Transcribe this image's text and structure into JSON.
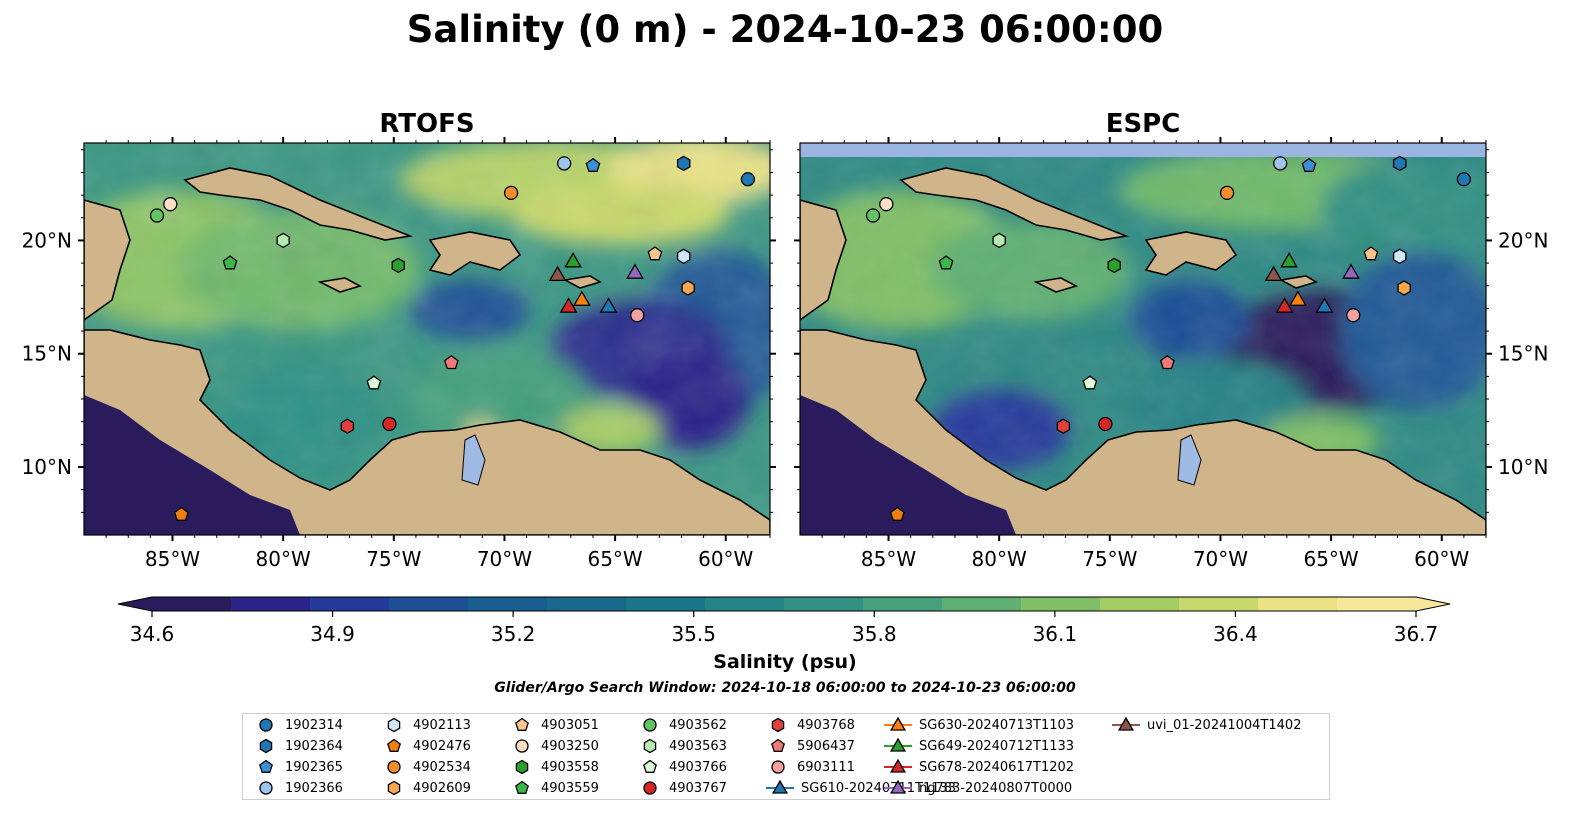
{
  "figure": {
    "title": "Salinity (0 m) - 2024-10-23 06:00:00",
    "subtitle": "Glider/Argo Search Window: 2024-10-18 06:00:00 to 2024-10-23 06:00:00"
  },
  "colors": {
    "land": "#d0b48a",
    "lakes_rivers": "#9fbbe3",
    "colormap": [
      "#2a1c5c",
      "#2b238a",
      "#263a9c",
      "#1d4f96",
      "#185e90",
      "#18698c",
      "#1c7689",
      "#258386",
      "#329183",
      "#45a07c",
      "#5fb072",
      "#7fbf66",
      "#a4cc64",
      "#c8d86a",
      "#eae283",
      "#f6e89a"
    ]
  },
  "panels": [
    {
      "title": "RTOFS",
      "lon_range": [
        -89,
        -58
      ],
      "lat_range": [
        7,
        24.3
      ],
      "ocean_field": "surface salinity"
    },
    {
      "title": "ESPC",
      "lon_range": [
        -89,
        -58
      ],
      "lat_range": [
        7,
        24.3
      ],
      "ocean_field": "surface salinity",
      "missing_band_color": "#9ab6e0",
      "missing_band_lat": [
        23.7,
        24.3
      ]
    }
  ],
  "axes": {
    "x_ticks": [
      "85°W",
      "80°W",
      "75°W",
      "70°W",
      "65°W",
      "60°W"
    ],
    "x_tick_values": [
      -85,
      -80,
      -75,
      -70,
      -65,
      -60
    ],
    "y_ticks": [
      "20°N",
      "15°N",
      "10°N"
    ],
    "y_tick_values": [
      20,
      15,
      10
    ]
  },
  "colorbar": {
    "label": "Salinity (psu)",
    "min": 34.6,
    "max": 36.7,
    "extend": "both",
    "ticks": [
      "34.6",
      "34.9",
      "35.2",
      "35.5",
      "35.8",
      "36.1",
      "36.4",
      "36.7"
    ],
    "tick_values": [
      34.6,
      34.9,
      35.2,
      35.5,
      35.8,
      36.1,
      36.4,
      36.7
    ]
  },
  "observations": [
    {
      "id": "1902314",
      "marker": "circle",
      "color": "#1f77b4",
      "lon": -59.0,
      "lat": 22.7
    },
    {
      "id": "1902364",
      "marker": "hexagon",
      "color": "#1f77b4",
      "lon": -61.9,
      "lat": 23.4
    },
    {
      "id": "1902365",
      "marker": "pentagon",
      "color": "#3c8fd6",
      "lon": -66.0,
      "lat": 23.3
    },
    {
      "id": "1902366",
      "marker": "circle",
      "color": "#9ec5ec",
      "lon": -67.3,
      "lat": 23.4
    },
    {
      "id": "4902113",
      "marker": "hexagon",
      "color": "#cfe8f8",
      "lon": -61.9,
      "lat": 19.3
    },
    {
      "id": "4902476",
      "marker": "pentagon",
      "color": "#f07f0f",
      "lon": -84.6,
      "lat": 7.9
    },
    {
      "id": "4902534",
      "marker": "circle",
      "color": "#f48d2c",
      "lon": -69.7,
      "lat": 22.1
    },
    {
      "id": "4902609",
      "marker": "hexagon",
      "color": "#f8a64f",
      "lon": -61.7,
      "lat": 17.9
    },
    {
      "id": "4903051",
      "marker": "pentagon",
      "color": "#fbc58a",
      "lon": -63.2,
      "lat": 19.4
    },
    {
      "id": "4903250",
      "marker": "circle",
      "color": "#fde0c6",
      "lon": -85.1,
      "lat": 21.6
    },
    {
      "id": "4903558",
      "marker": "hexagon",
      "color": "#2ca02c",
      "lon": -74.8,
      "lat": 18.9
    },
    {
      "id": "4903559",
      "marker": "pentagon",
      "color": "#3cb84a",
      "lon": -82.4,
      "lat": 19.0
    },
    {
      "id": "4903562",
      "marker": "circle",
      "color": "#62c462",
      "lon": -85.7,
      "lat": 21.1
    },
    {
      "id": "4903563",
      "marker": "hexagon",
      "color": "#b4ebb1",
      "lon": -80.0,
      "lat": 20.0
    },
    {
      "id": "4903766",
      "marker": "pentagon",
      "color": "#dcf6d8",
      "lon": -75.9,
      "lat": 13.7
    },
    {
      "id": "4903767",
      "marker": "circle",
      "color": "#d62728",
      "lon": -75.2,
      "lat": 11.9
    },
    {
      "id": "4903768",
      "marker": "hexagon",
      "color": "#e0413f",
      "lon": -77.1,
      "lat": 11.8
    },
    {
      "id": "5906437",
      "marker": "pentagon",
      "color": "#f07a7a",
      "lon": -72.4,
      "lat": 14.6
    },
    {
      "id": "6903111",
      "marker": "circle",
      "color": "#f4a0a0",
      "lon": -64.0,
      "lat": 16.7
    }
  ],
  "gliders": [
    {
      "id": "SG610-20240711T1133",
      "color": "#1f77b4",
      "lon": -65.3,
      "lat": 17.1
    },
    {
      "id": "SG630-20240713T1103",
      "color": "#ff7f0e",
      "lon": -66.5,
      "lat": 17.4
    },
    {
      "id": "SG649-20240712T1133",
      "color": "#2ca02c",
      "lon": -66.9,
      "lat": 19.1
    },
    {
      "id": "SG678-20240617T1202",
      "color": "#d62728",
      "lon": -67.1,
      "lat": 17.1
    },
    {
      "id": "ng783-20240807T0000",
      "color": "#9467bd",
      "lon": -64.1,
      "lat": 18.6
    },
    {
      "id": "uvi_01-20241004T1402",
      "color": "#8c564b",
      "lon": -67.6,
      "lat": 18.5
    }
  ]
}
